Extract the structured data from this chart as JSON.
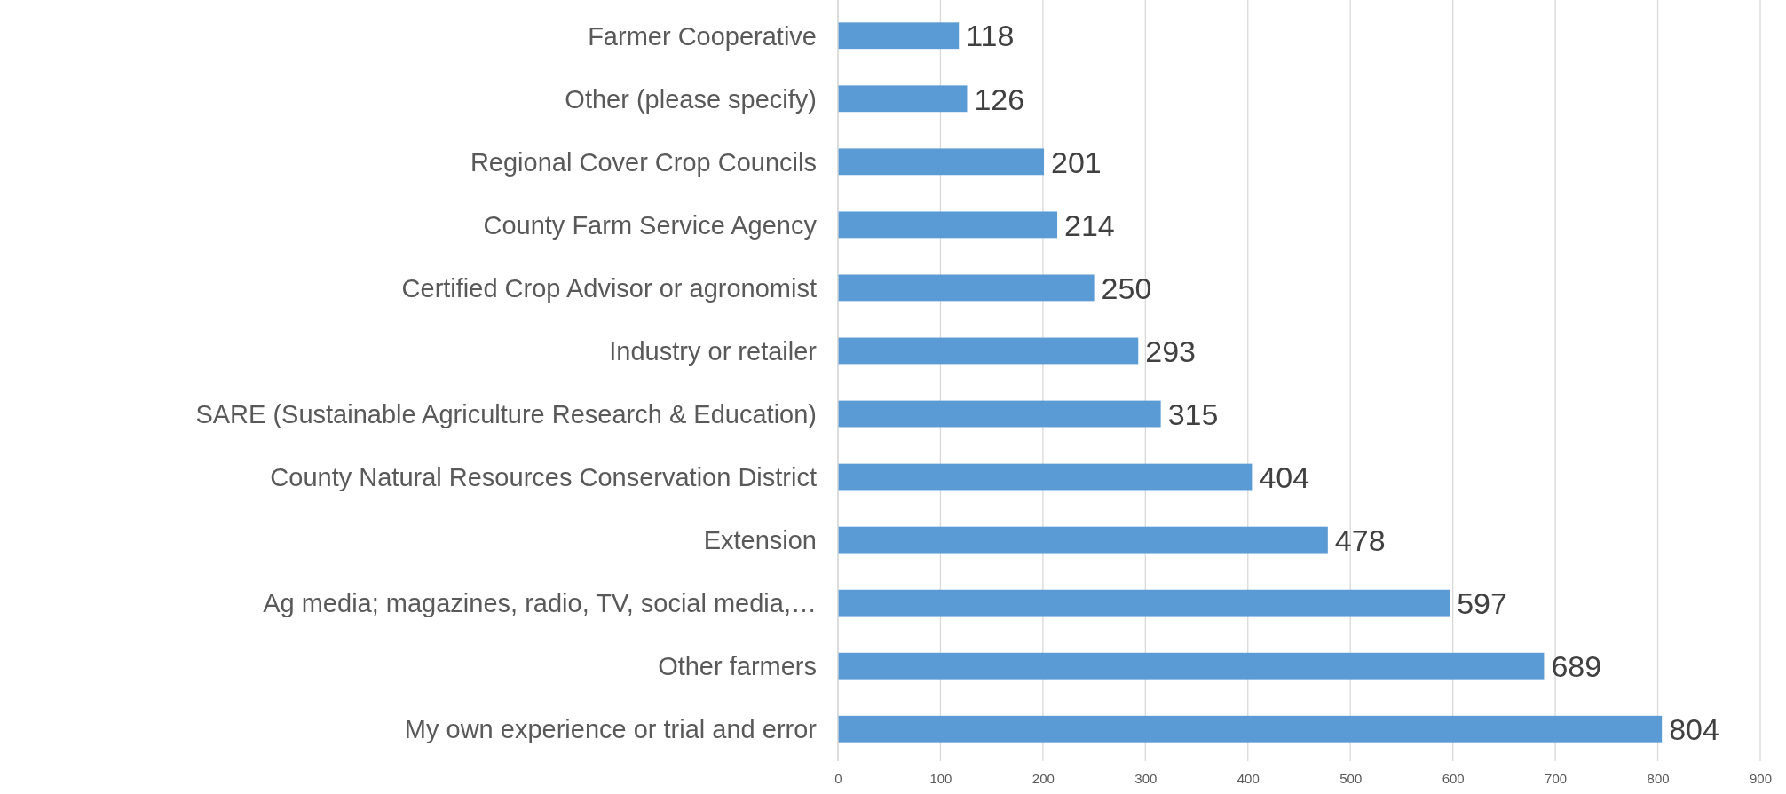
{
  "chart_data": {
    "type": "bar",
    "orientation": "horizontal",
    "categories": [
      "Farmer Cooperative",
      "Other (please specify)",
      "Regional Cover Crop Councils",
      "County Farm Service Agency",
      "Certified Crop Advisor or agronomist",
      "Industry or retailer",
      "SARE (Sustainable Agriculture Research & Education)",
      "County Natural Resources Conservation District",
      "Extension",
      "Ag media; magazines, radio, TV, social media,…",
      "Other farmers",
      "My own experience or trial and error"
    ],
    "values": [
      118,
      126,
      201,
      214,
      250,
      293,
      315,
      404,
      478,
      597,
      689,
      804
    ],
    "color": "#5b9bd5",
    "xlim": [
      0,
      900
    ],
    "xticks": [
      0,
      100,
      200,
      300,
      400,
      500,
      600,
      700,
      800,
      900
    ],
    "grid": "x",
    "data_labels": true
  }
}
